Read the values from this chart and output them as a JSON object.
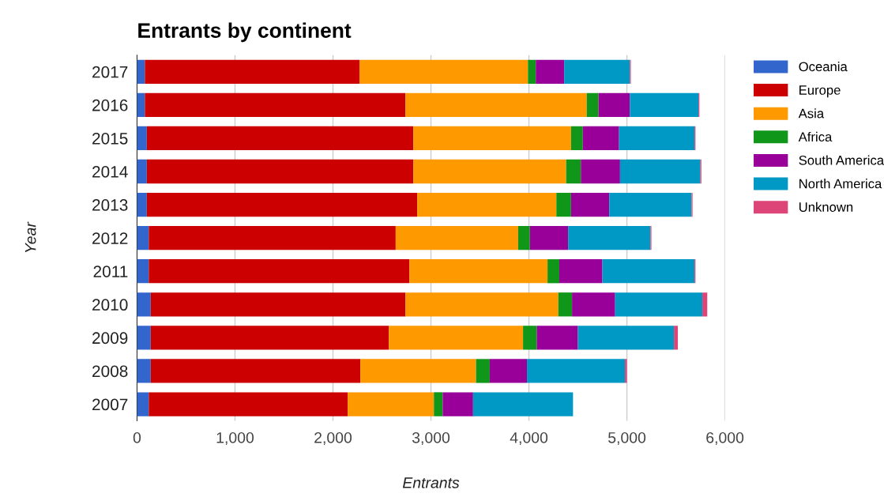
{
  "chart_data": {
    "type": "bar",
    "orientation": "horizontal",
    "stacked": true,
    "title": "Entrants by continent",
    "xlabel": "Entrants",
    "ylabel": "Year",
    "categories": [
      "2017",
      "2016",
      "2015",
      "2014",
      "2013",
      "2012",
      "2011",
      "2010",
      "2009",
      "2008",
      "2007"
    ],
    "series": [
      {
        "name": "Oceania",
        "color": "#3366cc",
        "values": [
          80,
          80,
          100,
          100,
          100,
          120,
          120,
          140,
          140,
          140,
          120
        ]
      },
      {
        "name": "Europe",
        "color": "#cc0000",
        "values": [
          2190,
          2660,
          2720,
          2720,
          2760,
          2520,
          2660,
          2600,
          2430,
          2140,
          2030
        ]
      },
      {
        "name": "Asia",
        "color": "#ff9900",
        "values": [
          1720,
          1850,
          1610,
          1560,
          1420,
          1250,
          1410,
          1560,
          1370,
          1180,
          880
        ]
      },
      {
        "name": "Africa",
        "color": "#109618",
        "values": [
          80,
          120,
          120,
          150,
          150,
          120,
          120,
          140,
          140,
          140,
          90
        ]
      },
      {
        "name": "South America",
        "color": "#990099",
        "values": [
          290,
          320,
          370,
          400,
          390,
          390,
          440,
          440,
          420,
          380,
          310
        ]
      },
      {
        "name": "North America",
        "color": "#0099c6",
        "values": [
          670,
          700,
          770,
          820,
          840,
          840,
          940,
          890,
          980,
          1000,
          1020
        ]
      },
      {
        "name": "Unknown",
        "color": "#dd4477",
        "values": [
          10,
          10,
          10,
          10,
          10,
          10,
          10,
          50,
          40,
          20,
          null
        ]
      }
    ],
    "xlim": [
      0,
      6000
    ],
    "xticks": [
      {
        "value": 0,
        "label": "0"
      },
      {
        "value": 1000,
        "label": "1,000"
      },
      {
        "value": 2000,
        "label": "2,000"
      },
      {
        "value": 3000,
        "label": "3,000"
      },
      {
        "value": 4000,
        "label": "4,000"
      },
      {
        "value": 5000,
        "label": "5,000"
      },
      {
        "value": 6000,
        "label": "6,000"
      }
    ],
    "grid": "x",
    "legend": "top right"
  }
}
